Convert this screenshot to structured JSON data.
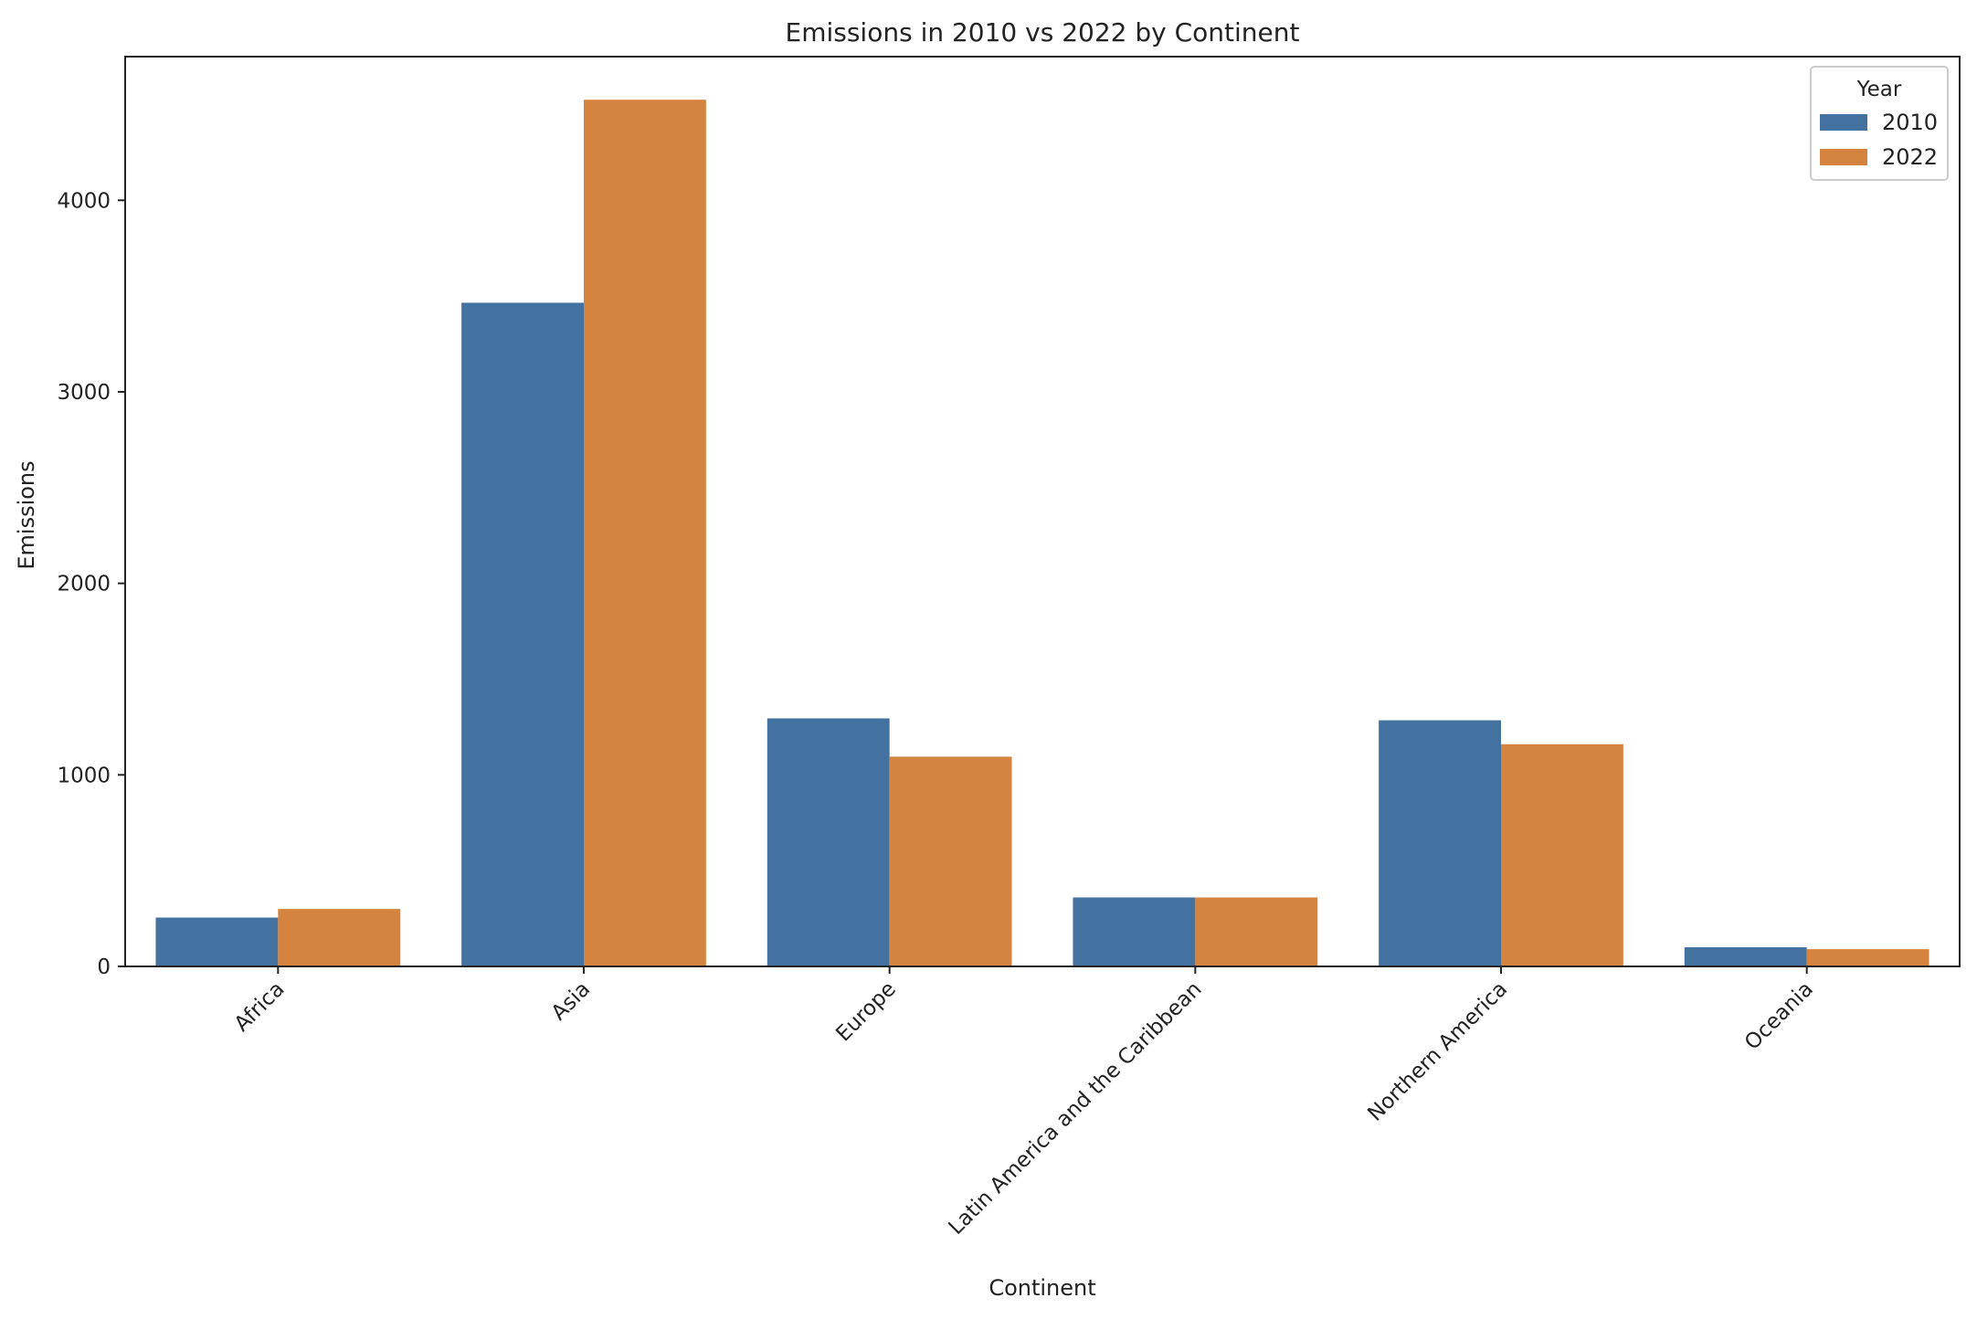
{
  "chart_data": {
    "type": "bar",
    "title": "Emissions in 2010 vs 2022 by Continent",
    "xlabel": "Continent",
    "ylabel": "Emissions",
    "categories": [
      "Africa",
      "Asia",
      "Europe",
      "Latin America and the Caribbean",
      "Northern America",
      "Oceania"
    ],
    "series": [
      {
        "name": "2010",
        "color": "#4472a0",
        "values": [
          255,
          3465,
          1295,
          360,
          1285,
          100
        ]
      },
      {
        "name": "2022",
        "color": "#d4843e",
        "values": [
          300,
          4525,
          1095,
          360,
          1160,
          90
        ]
      }
    ],
    "ylim": [
      0,
      4750
    ],
    "yticks": [
      0,
      1000,
      2000,
      3000,
      4000
    ],
    "grid": false,
    "legend": {
      "title": "Year",
      "placement": "top-right"
    }
  }
}
